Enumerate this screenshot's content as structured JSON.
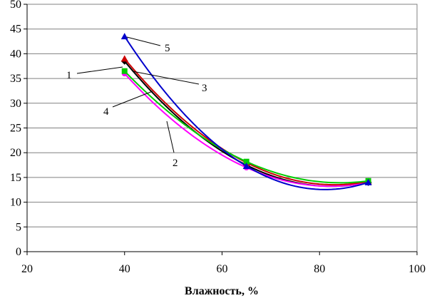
{
  "chart_data": {
    "type": "line",
    "xlabel": "Влажность, %",
    "ylabel": "",
    "xlim": [
      20,
      100
    ],
    "ylim": [
      0,
      50
    ],
    "xticks": [
      20,
      40,
      60,
      80,
      100
    ],
    "yticks": [
      0,
      5,
      10,
      15,
      20,
      25,
      30,
      35,
      40,
      45,
      50
    ],
    "grid": "horizontal",
    "x": [
      40,
      65,
      90
    ],
    "series": [
      {
        "name": "1",
        "color": "#000000",
        "marker": "diamond",
        "values": [
          38.5,
          17.5,
          14.0
        ]
      },
      {
        "name": "2",
        "color": "#ff00ff",
        "marker": "circle",
        "values": [
          36.0,
          17.0,
          14.0
        ]
      },
      {
        "name": "3",
        "color": "#cc0000",
        "marker": "triangle",
        "values": [
          39.0,
          18.0,
          14.2
        ]
      },
      {
        "name": "4",
        "color": "#00cc00",
        "marker": "square",
        "values": [
          36.5,
          18.2,
          14.3
        ]
      },
      {
        "name": "5",
        "color": "#0000cc",
        "marker": "triangle",
        "values": [
          43.5,
          17.3,
          14.0
        ]
      }
    ]
  }
}
